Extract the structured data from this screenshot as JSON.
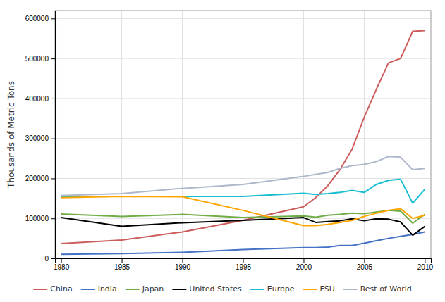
{
  "chart_data": {
    "type": "line",
    "ylabel": "Thousands of Metric Tons",
    "x": [
      1980,
      1985,
      1990,
      1995,
      2000,
      2001,
      2002,
      2003,
      2004,
      2005,
      2006,
      2007,
      2008,
      2009,
      2010
    ],
    "series": [
      {
        "name": "China",
        "color": "#CD5C5C",
        "values": [
          37000,
          46000,
          66000,
          95000,
          129000,
          152000,
          182000,
          222000,
          273000,
          353000,
          423000,
          489000,
          500000,
          568000,
          570000
        ]
      },
      {
        "name": "India",
        "color": "#4472C4",
        "values": [
          10000,
          12000,
          15000,
          22000,
          27000,
          27000,
          28000,
          32000,
          32000,
          38000,
          44000,
          50000,
          55000,
          60000,
          66000
        ]
      },
      {
        "name": "Japan",
        "color": "#70AD47",
        "values": [
          111000,
          105000,
          110000,
          102000,
          106000,
          103000,
          108000,
          110000,
          113000,
          112000,
          116000,
          120000,
          118000,
          88000,
          110000
        ]
      },
      {
        "name": "United States",
        "color": "#000000",
        "values": [
          102000,
          80000,
          89000,
          95000,
          102000,
          90000,
          92000,
          94000,
          99000,
          94000,
          99000,
          98000,
          91000,
          58000,
          80000
        ]
      },
      {
        "name": "Europe",
        "color": "#17BECF",
        "values": [
          155000,
          155000,
          155000,
          155000,
          163000,
          160000,
          162000,
          165000,
          170000,
          165000,
          185000,
          195000,
          198000,
          138000,
          173000
        ]
      },
      {
        "name": "FSU",
        "color": "#FFA500",
        "values": [
          152000,
          155000,
          154000,
          120000,
          82000,
          82000,
          85000,
          90000,
          95000,
          105000,
          113000,
          120000,
          124000,
          100000,
          108000
        ]
      },
      {
        "name": "Rest of World",
        "color": "#ADB9CA",
        "values": [
          157000,
          162000,
          175000,
          185000,
          205000,
          210000,
          215000,
          225000,
          232000,
          235000,
          242000,
          255000,
          253000,
          222000,
          225000
        ]
      }
    ],
    "xlim": [
      1979.5,
      2010.5
    ],
    "xticks": [
      1980,
      1985,
      1990,
      1995,
      2000,
      2005,
      2010
    ],
    "ylim": [
      0,
      620000
    ],
    "yticks": [
      0,
      100000,
      200000,
      300000,
      400000,
      500000,
      600000
    ],
    "grid": true,
    "legend": "bottom"
  }
}
